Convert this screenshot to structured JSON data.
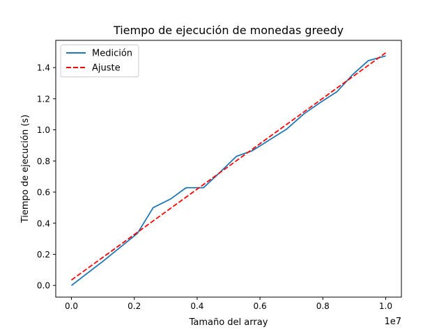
{
  "chart_data": {
    "type": "line",
    "title": "Tiempo de ejecución de monedas greedy",
    "xlabel": "Tamaño del array",
    "ylabel": "Tiempo de ejecución (s)",
    "x_offset_label": "1e7",
    "xlim": [
      -500000,
      10500000
    ],
    "ylim": [
      -0.075,
      1.575
    ],
    "x_ticks": [
      0,
      2000000,
      4000000,
      6000000,
      8000000,
      10000000
    ],
    "x_tick_labels": [
      "0.0",
      "0.2",
      "0.4",
      "0.6",
      "0.8",
      "1.0"
    ],
    "y_ticks": [
      0.0,
      0.2,
      0.4,
      0.6,
      0.8,
      1.0,
      1.2,
      1.4
    ],
    "y_tick_labels": [
      "0.0",
      "0.2",
      "0.4",
      "0.6",
      "0.8",
      "1.0",
      "1.2",
      "1.4"
    ],
    "grid": false,
    "legend_position": "top-left",
    "series": [
      {
        "name": "Medición",
        "style": "solid",
        "color": "#1f77b4",
        "x": [
          0,
          1000000,
          2100000,
          2600000,
          3150000,
          3650000,
          4000000,
          4200000,
          4700000,
          5250000,
          5750000,
          6300000,
          6850000,
          7400000,
          7950000,
          8450000,
          8950000,
          9450000,
          10000000
        ],
        "y": [
          0.0,
          0.155,
          0.335,
          0.5,
          0.555,
          0.628,
          0.628,
          0.628,
          0.722,
          0.83,
          0.865,
          0.935,
          1.005,
          1.103,
          1.18,
          1.245,
          1.355,
          1.445,
          1.475
        ]
      },
      {
        "name": "Ajuste",
        "style": "dashed",
        "color": "#ff0000",
        "x": [
          0,
          10000000
        ],
        "y": [
          0.035,
          1.495
        ]
      }
    ]
  }
}
